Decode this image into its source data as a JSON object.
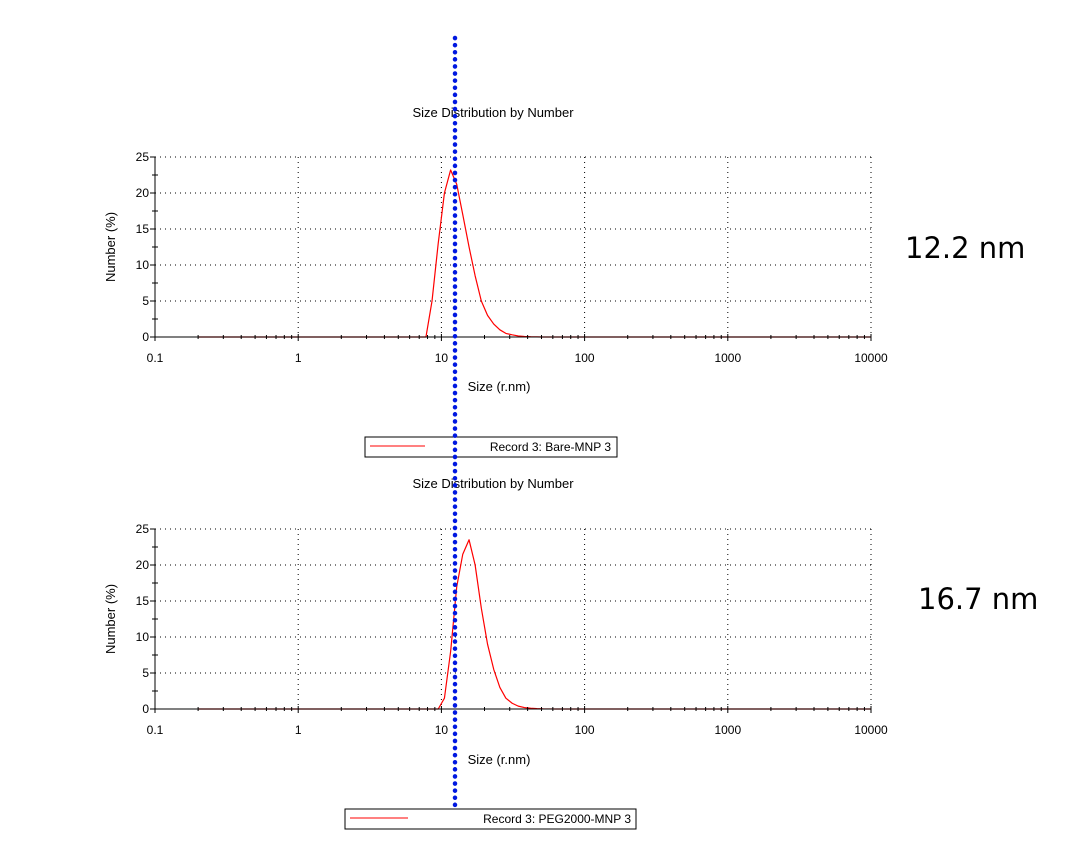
{
  "chart_data": [
    {
      "type": "line",
      "title": "Size Distribution by Number",
      "xlabel": "Size (r.nm)",
      "ylabel": "Number (%)",
      "x_scale": "log",
      "xlim": [
        0.1,
        10000
      ],
      "ylim": [
        0,
        25
      ],
      "x_ticks": [
        "0.1",
        "1",
        "10",
        "100",
        "1000",
        "10000"
      ],
      "y_ticks": [
        "0",
        "5",
        "10",
        "15",
        "20",
        "25"
      ],
      "grid": true,
      "legend_position": "bottom-center",
      "series": [
        {
          "name": "Record 3: Bare-MNP 3",
          "color": "#ff0000",
          "x": [
            0.2,
            0.5,
            1,
            2,
            5,
            7.8,
            8.6,
            9.5,
            10.5,
            11.6,
            12.8,
            14.1,
            15.6,
            17.2,
            19.0,
            21.0,
            23.2,
            25.6,
            28.2,
            31.2,
            34.4,
            38.0,
            42.0,
            46.4,
            51.0,
            60,
            100,
            1000,
            10000
          ],
          "values": [
            0,
            0,
            0,
            0,
            0,
            0,
            5,
            13,
            20,
            23.2,
            21.2,
            17,
            12.5,
            8.5,
            5,
            3,
            1.8,
            1.0,
            0.5,
            0.3,
            0.15,
            0.08,
            0.04,
            0.02,
            0,
            0,
            0,
            0,
            0
          ]
        }
      ],
      "annotation": "12.2 nm"
    },
    {
      "type": "line",
      "title": "Size Distribution by Number",
      "xlabel": "Size (r.nm)",
      "ylabel": "Number (%)",
      "x_scale": "log",
      "xlim": [
        0.1,
        10000
      ],
      "ylim": [
        0,
        25
      ],
      "x_ticks": [
        "0.1",
        "1",
        "10",
        "100",
        "1000",
        "10000"
      ],
      "y_ticks": [
        "0",
        "5",
        "10",
        "15",
        "20",
        "25"
      ],
      "grid": true,
      "legend_position": "bottom-center",
      "series": [
        {
          "name": "Record 3: PEG2000-MNP 3",
          "color": "#ff0000",
          "x": [
            0.2,
            0.5,
            1,
            2,
            5,
            9.5,
            10.5,
            11.6,
            12.8,
            14.1,
            15.6,
            17.2,
            19.0,
            21.0,
            23.2,
            25.6,
            28.2,
            31.2,
            34.4,
            38.0,
            42.0,
            46.4,
            51.3,
            56.6,
            62.6,
            70,
            100,
            1000,
            10000
          ],
          "values": [
            0,
            0,
            0,
            0,
            0,
            0,
            1.5,
            8,
            17,
            21.5,
            23.5,
            20,
            14,
            9,
            5.5,
            3,
            1.5,
            0.8,
            0.4,
            0.2,
            0.1,
            0.05,
            0.02,
            0.01,
            0,
            0,
            0,
            0,
            0
          ]
        }
      ],
      "annotation": "16.7 nm"
    }
  ]
}
